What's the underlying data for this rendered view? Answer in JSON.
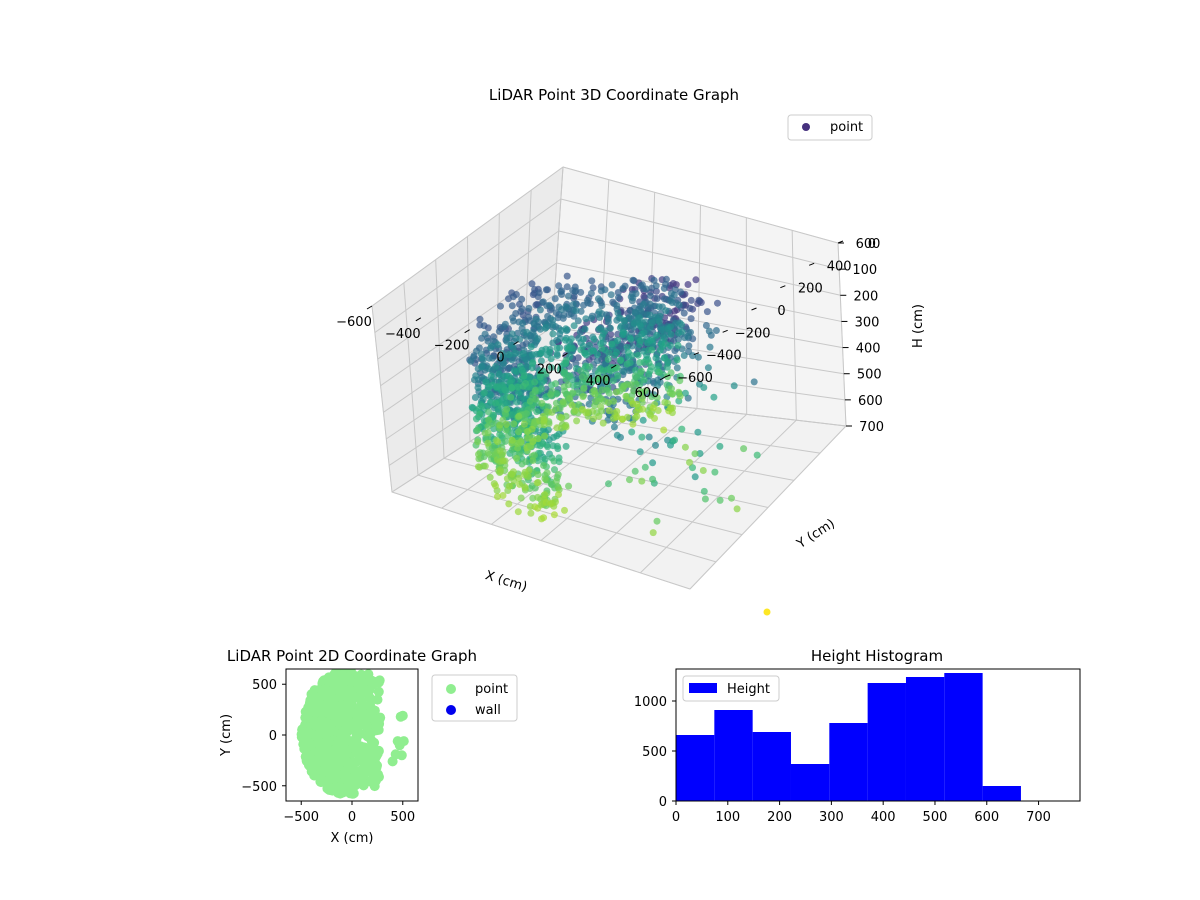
{
  "chart_data": [
    {
      "type": "scatter",
      "title": "LiDAR Point 3D Coordinate Graph",
      "xlabel": "X (cm)",
      "ylabel": "Y (cm)",
      "zlabel": "H (cm)",
      "xlim": [
        -600,
        600
      ],
      "ylim": [
        -600,
        600
      ],
      "zlim": [
        0,
        700
      ],
      "z_inverted": true,
      "xticks": [
        -600,
        -400,
        -200,
        0,
        200,
        400,
        600
      ],
      "yticks": [
        -600,
        -400,
        -200,
        0,
        200,
        400,
        600
      ],
      "zticks": [
        0,
        100,
        200,
        300,
        400,
        500,
        600,
        700
      ],
      "legend": [
        "point"
      ],
      "legend_loc": "upper-right",
      "colormap": "viridis",
      "grid": true
    },
    {
      "type": "scatter",
      "title": "LiDAR Point 2D Coordinate Graph",
      "xlabel": "X (cm)",
      "ylabel": "Y (cm)",
      "xlim": [
        -650,
        650
      ],
      "ylim": [
        -650,
        650
      ],
      "xticks": [
        -500,
        0,
        500
      ],
      "yticks": [
        -500,
        0,
        500
      ],
      "series": [
        {
          "name": "point",
          "color": "#90ee90"
        },
        {
          "name": "wall",
          "color": "#0000ee"
        }
      ],
      "legend_loc": "outside-right"
    },
    {
      "type": "bar",
      "title": "Height Histogram",
      "xlabel": "",
      "ylabel": "",
      "xlim": [
        0,
        780
      ],
      "ylim": [
        0,
        1320
      ],
      "xticks": [
        0,
        100,
        200,
        300,
        400,
        500,
        600,
        700
      ],
      "yticks": [
        0,
        500,
        1000
      ],
      "bin_edges": [
        0,
        74,
        148,
        222,
        296,
        370,
        444,
        518,
        592,
        666,
        740
      ],
      "values": [
        660,
        910,
        690,
        370,
        780,
        1180,
        1240,
        1280,
        150,
        0
      ],
      "series": [
        {
          "name": "Height",
          "color": "#0000ff"
        }
      ],
      "legend_loc": "upper-left"
    }
  ]
}
